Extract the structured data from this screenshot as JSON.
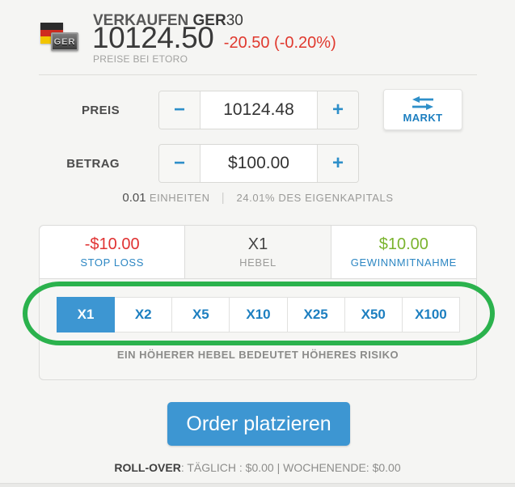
{
  "header": {
    "flag_badge": "GER",
    "action_label": "VERKAUFEN",
    "instrument": "GER",
    "instrument_suffix": "30",
    "price": "10124.50",
    "change": "-20.50 (-0.20%)",
    "source_note": "PREISE BEI ETORO"
  },
  "price_row": {
    "label": "PREIS",
    "value": "10124.48",
    "minus_glyph": "−",
    "plus_glyph": "+"
  },
  "market_button": {
    "label": "MARKT",
    "icon": "swap-arrows"
  },
  "amount_row": {
    "label": "BETRAG",
    "value": "$100.00",
    "minus_glyph": "−",
    "plus_glyph": "+"
  },
  "units_line": {
    "units_value": "0.01",
    "units_label": "EINHEITEN",
    "separator": "|",
    "equity_text": "24.01% DES EIGENKAPITALS"
  },
  "summary": {
    "stop_loss": {
      "value": "-$10.00",
      "label": "STOP LOSS"
    },
    "leverage": {
      "value": "X1",
      "label": "HEBEL"
    },
    "take_profit": {
      "value": "$10.00",
      "label": "GEWINNMITNAHME"
    }
  },
  "leverage_options": [
    {
      "label": "X1",
      "selected": true
    },
    {
      "label": "X2",
      "selected": false
    },
    {
      "label": "X5",
      "selected": false
    },
    {
      "label": "X10",
      "selected": false
    },
    {
      "label": "X25",
      "selected": false
    },
    {
      "label": "X50",
      "selected": false
    },
    {
      "label": "X100",
      "selected": false
    }
  ],
  "risk_note": "EIN HÖHERER HEBEL BEDEUTET HÖHERES RISIKO",
  "submit_label": "Order platzieren",
  "footer": {
    "rollover_label": "ROLL-OVER",
    "rollover_detail": ": TÄGLICH : $0.00 | WOCHENENDE: $0.00"
  },
  "colors": {
    "accent_blue": "#2e8fc9",
    "selected_blue": "#3d96d2",
    "negative_red": "#e0392e",
    "positive_green": "#7ab32d",
    "annotation_green": "#2bb24d",
    "background": "#f5f5f3"
  }
}
